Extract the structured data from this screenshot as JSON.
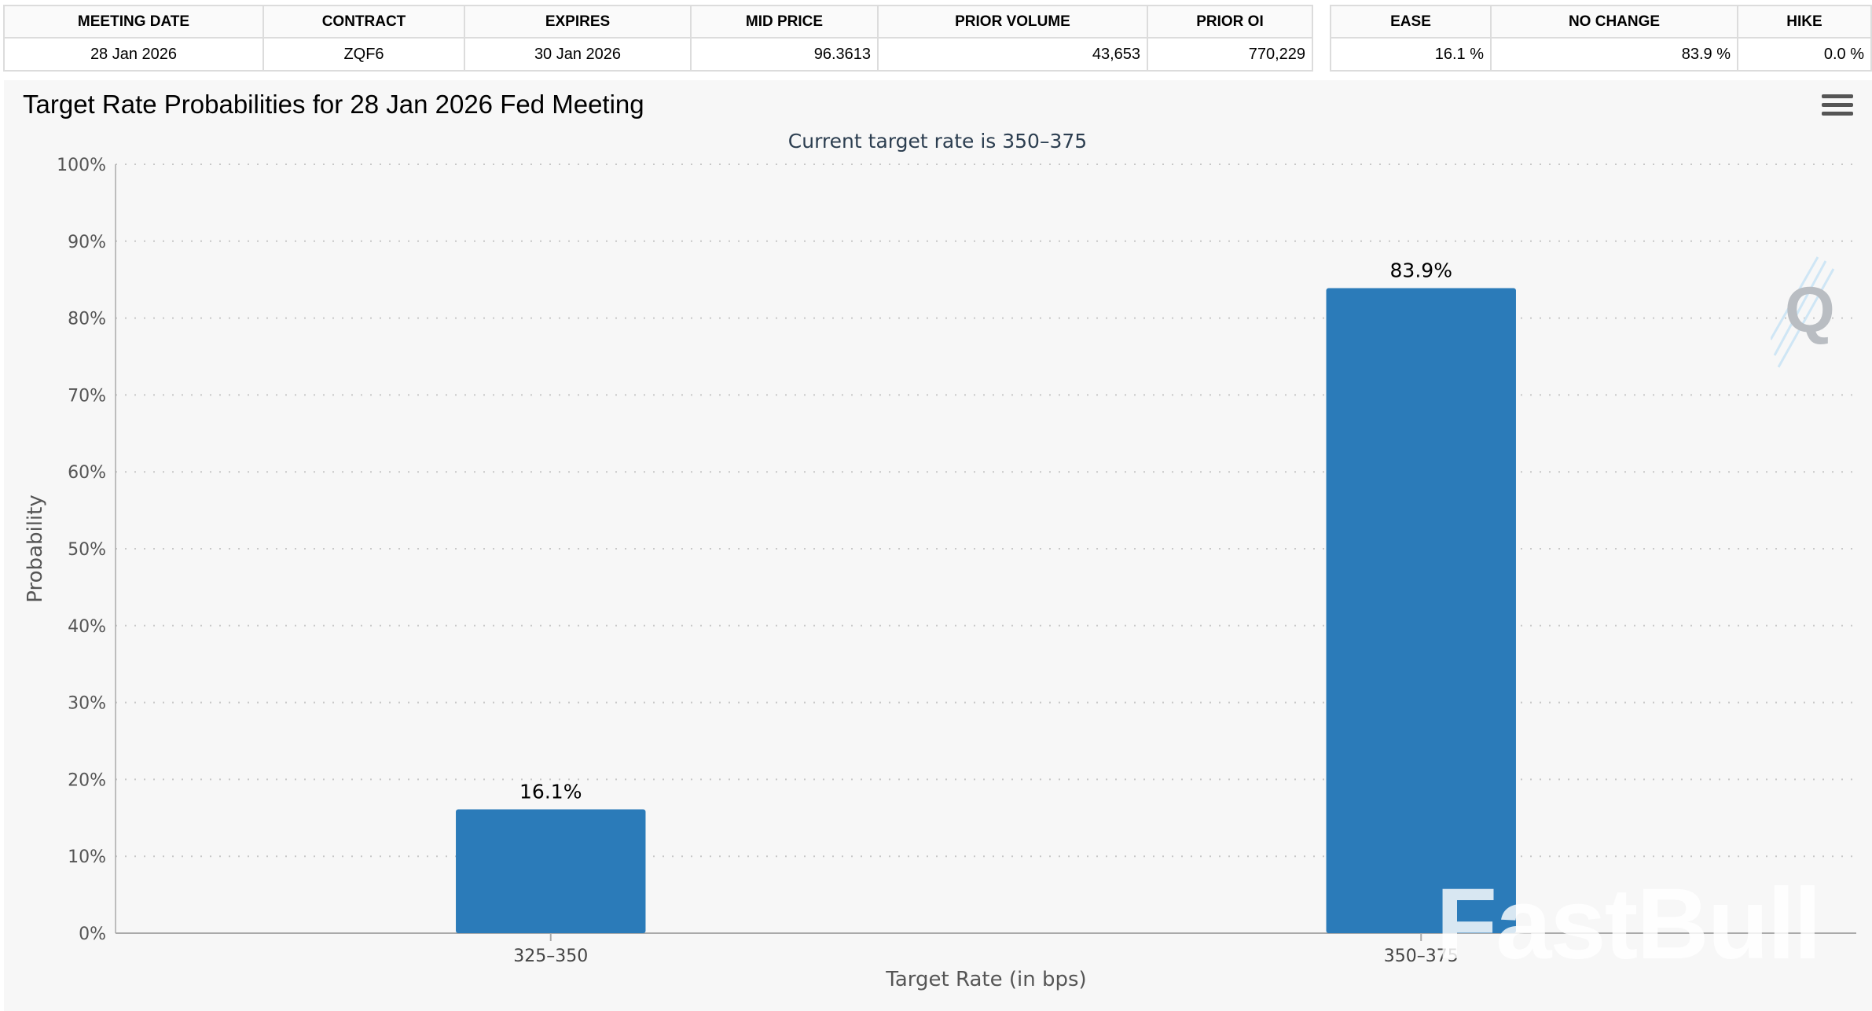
{
  "meeting_table": {
    "headers": [
      "MEETING DATE",
      "CONTRACT",
      "EXPIRES",
      "MID PRICE",
      "PRIOR VOLUME",
      "PRIOR OI"
    ],
    "row": [
      "28 Jan 2026",
      "ZQF6",
      "30 Jan 2026",
      "96.3613",
      "43,653",
      "770,229"
    ]
  },
  "probability_table": {
    "headers": [
      "EASE",
      "NO CHANGE",
      "HIKE"
    ],
    "row": [
      "16.1 %",
      "83.9 %",
      "0.0 %"
    ]
  },
  "chart": {
    "title": "Target Rate Probabilities for 28 Jan 2026 Fed Meeting",
    "menu_icon": "hamburger-menu-icon",
    "watermark": "FastBull",
    "logo": "Q"
  },
  "chart_data": {
    "type": "bar",
    "subtitle": "Current target rate is 350–375",
    "xlabel": "Target Rate (in bps)",
    "ylabel": "Probability",
    "categories": [
      "325–350",
      "350–375"
    ],
    "values": [
      16.1,
      83.9
    ],
    "data_labels": [
      "16.1%",
      "83.9%"
    ],
    "ylim": [
      0,
      100
    ],
    "yticks": [
      "0%",
      "10%",
      "20%",
      "30%",
      "40%",
      "50%",
      "60%",
      "70%",
      "80%",
      "90%",
      "100%"
    ],
    "grid": true,
    "legend": "none",
    "bar_color": "#2b7bb9"
  }
}
